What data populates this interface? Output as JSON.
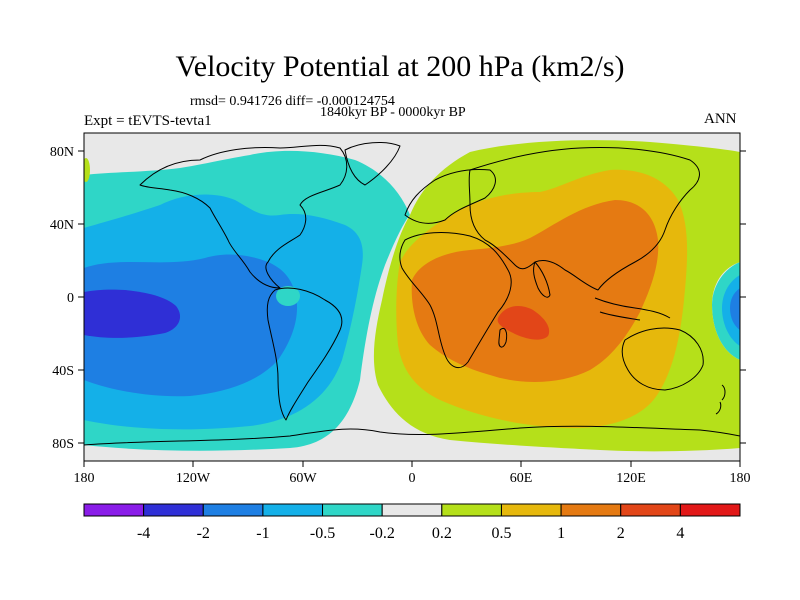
{
  "title": "Velocity Potential at 200 hPa (km2/s)",
  "stats": "rmsd= 0.941726 diff= -0.000124754",
  "period": "1840kyr BP - 0000kyr BP",
  "experiment": "Expt = tEVTS-tevta1",
  "season": "ANN",
  "lat_labels": [
    "80N",
    "40N",
    "0",
    "40S",
    "80S"
  ],
  "lon_labels": [
    "180",
    "120W",
    "60W",
    "0",
    "60E",
    "120E",
    "180"
  ],
  "colorbar": {
    "labels": [
      "-4",
      "-2",
      "-1",
      "-0.5",
      "-0.2",
      "0.2",
      "0.5",
      "1",
      "2",
      "4"
    ],
    "colors": [
      "#8a1de8",
      "#2f2fd6",
      "#1e7fe3",
      "#14b0e8",
      "#2fd6c7",
      "#e8e8e8",
      "#b5e01a",
      "#e6b80c",
      "#e57a12",
      "#e24618",
      "#e21818"
    ]
  },
  "palette": {
    "ocean_bg": "#e8e8e8",
    "neg_weak": "#2fd6c7",
    "neg_mid": "#14b0e8",
    "neg_strong": "#1e7fe3",
    "neg_max": "#2f2fd6",
    "pos_weak": "#b5e01a",
    "pos_mid": "#e6b80c",
    "pos_strong": "#e57a12",
    "pos_max": "#e24618"
  }
}
